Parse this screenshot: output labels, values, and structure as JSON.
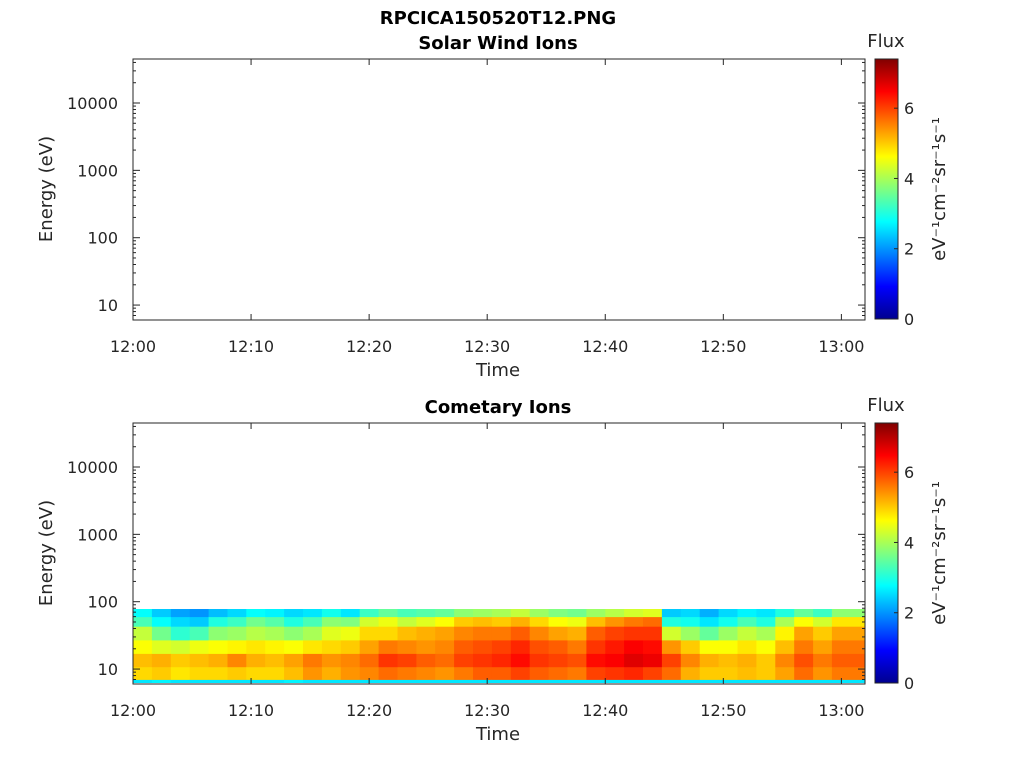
{
  "figure": {
    "title": "RPCICA150520T12.PNG"
  },
  "chart_data": [
    {
      "type": "heatmap",
      "title": "Solar Wind Ions",
      "xlabel": "Time",
      "ylabel": "Energy (eV)",
      "x_tick_labels": [
        "12:00",
        "12:10",
        "12:20",
        "12:30",
        "12:40",
        "12:50",
        "13:00"
      ],
      "y_tick_labels": [
        "10",
        "100",
        "1000",
        "10000"
      ],
      "y_scale": "log",
      "ylim": [
        6,
        45000
      ],
      "xlim_minutes": [
        0,
        62
      ],
      "colorbar": {
        "title": "Flux",
        "label": "eV⁻¹cm⁻²sr⁻¹s⁻¹",
        "tick_labels": [
          "0",
          "2",
          "4",
          "6"
        ],
        "range": [
          0,
          7.4
        ],
        "colormap": "jet"
      },
      "columns": []
    },
    {
      "type": "heatmap",
      "title": "Cometary Ions",
      "xlabel": "Time",
      "ylabel": "Energy (eV)",
      "x_tick_labels": [
        "12:00",
        "12:10",
        "12:20",
        "12:30",
        "12:40",
        "12:50",
        "13:00"
      ],
      "y_tick_labels": [
        "10",
        "100",
        "1000",
        "10000"
      ],
      "y_scale": "log",
      "ylim": [
        6,
        45000
      ],
      "xlim_minutes": [
        0,
        62
      ],
      "colorbar": {
        "title": "Flux",
        "label": "eV⁻¹cm⁻²sr⁻¹s⁻¹",
        "tick_labels": [
          "0",
          "2",
          "4",
          "6"
        ],
        "range": [
          0,
          7.4
        ],
        "colormap": "jet"
      },
      "energy_bands_eV": [
        [
          6.3,
          7.0
        ],
        [
          7.0,
          10.8
        ],
        [
          10.8,
          17.0
        ],
        [
          17.0,
          27.0
        ],
        [
          27.0,
          43.0
        ],
        [
          43.0,
          60.0
        ],
        [
          60.0,
          78.0
        ]
      ],
      "columns": [
        {
          "t": 0.0,
          "dt": 1.6,
          "flux": [
            2.6,
            4.9,
            5.1,
            4.6,
            4.2,
            3.3,
            2.8
          ]
        },
        {
          "t": 1.6,
          "dt": 1.6,
          "flux": [
            2.7,
            5.0,
            5.2,
            4.4,
            3.6,
            2.8,
            2.4
          ]
        },
        {
          "t": 3.2,
          "dt": 1.6,
          "flux": [
            2.6,
            4.8,
            5.0,
            4.3,
            3.1,
            2.5,
            2.1
          ]
        },
        {
          "t": 4.8,
          "dt": 1.6,
          "flux": [
            2.6,
            4.9,
            5.1,
            4.5,
            3.3,
            2.4,
            2.0
          ]
        },
        {
          "t": 6.4,
          "dt": 1.6,
          "flux": [
            2.6,
            4.9,
            5.2,
            4.6,
            3.8,
            3.0,
            2.3
          ]
        },
        {
          "t": 8.0,
          "dt": 1.6,
          "flux": [
            2.6,
            5.0,
            5.5,
            4.7,
            3.9,
            3.2,
            2.5
          ]
        },
        {
          "t": 9.6,
          "dt": 1.6,
          "flux": [
            2.6,
            4.9,
            5.2,
            4.8,
            4.1,
            3.6,
            2.8
          ]
        },
        {
          "t": 11.2,
          "dt": 1.6,
          "flux": [
            2.6,
            4.9,
            5.1,
            4.7,
            4.0,
            3.4,
            2.7
          ]
        },
        {
          "t": 12.8,
          "dt": 1.6,
          "flux": [
            2.7,
            5.1,
            5.3,
            4.6,
            3.8,
            3.0,
            2.5
          ]
        },
        {
          "t": 14.4,
          "dt": 1.6,
          "flux": [
            2.6,
            5.4,
            5.6,
            4.8,
            4.0,
            3.3,
            2.6
          ]
        },
        {
          "t": 16.0,
          "dt": 1.6,
          "flux": [
            2.6,
            5.2,
            5.4,
            4.9,
            4.4,
            3.8,
            2.9
          ]
        },
        {
          "t": 17.6,
          "dt": 1.6,
          "flux": [
            2.6,
            5.4,
            5.5,
            5.0,
            4.5,
            3.7,
            2.6
          ]
        },
        {
          "t": 19.2,
          "dt": 1.6,
          "flux": [
            2.6,
            5.5,
            5.7,
            5.3,
            4.9,
            4.3,
            3.2
          ]
        },
        {
          "t": 20.8,
          "dt": 1.6,
          "flux": [
            2.6,
            5.7,
            6.1,
            5.6,
            4.9,
            4.5,
            3.5
          ]
        },
        {
          "t": 22.4,
          "dt": 1.6,
          "flux": [
            2.6,
            5.6,
            6.0,
            5.5,
            5.1,
            4.2,
            3.3
          ]
        },
        {
          "t": 24.0,
          "dt": 1.6,
          "flux": [
            2.6,
            5.5,
            5.8,
            5.4,
            5.2,
            4.4,
            3.4
          ]
        },
        {
          "t": 25.6,
          "dt": 1.6,
          "flux": [
            2.6,
            5.4,
            5.7,
            5.5,
            5.3,
            4.6,
            3.5
          ]
        },
        {
          "t": 27.2,
          "dt": 1.6,
          "flux": [
            2.6,
            5.6,
            6.0,
            5.8,
            5.5,
            5.0,
            3.8
          ]
        },
        {
          "t": 28.8,
          "dt": 1.6,
          "flux": [
            2.6,
            5.8,
            6.1,
            5.9,
            5.6,
            5.1,
            3.9
          ]
        },
        {
          "t": 30.4,
          "dt": 1.6,
          "flux": [
            2.6,
            5.8,
            6.2,
            6.0,
            5.6,
            5.0,
            4.0
          ]
        },
        {
          "t": 32.0,
          "dt": 1.6,
          "flux": [
            2.6,
            6.0,
            6.4,
            6.2,
            5.8,
            5.2,
            4.2
          ]
        },
        {
          "t": 33.6,
          "dt": 1.6,
          "flux": [
            2.6,
            5.8,
            6.1,
            5.9,
            5.5,
            4.9,
            3.9
          ]
        },
        {
          "t": 35.2,
          "dt": 1.6,
          "flux": [
            2.6,
            5.7,
            6.0,
            5.8,
            5.3,
            4.6,
            3.7
          ]
        },
        {
          "t": 36.8,
          "dt": 1.6,
          "flux": [
            2.6,
            5.6,
            5.9,
            5.6,
            5.2,
            4.5,
            3.6
          ]
        },
        {
          "t": 38.4,
          "dt": 1.6,
          "flux": [
            2.6,
            6.0,
            6.4,
            6.1,
            5.8,
            5.1,
            3.9
          ]
        },
        {
          "t": 40.0,
          "dt": 1.6,
          "flux": [
            2.6,
            6.1,
            6.5,
            6.3,
            6.0,
            5.4,
            4.1
          ]
        },
        {
          "t": 41.6,
          "dt": 1.6,
          "flux": [
            2.6,
            6.2,
            6.7,
            6.5,
            6.1,
            5.6,
            4.3
          ]
        },
        {
          "t": 43.2,
          "dt": 1.6,
          "flux": [
            2.6,
            6.0,
            6.6,
            6.4,
            6.1,
            5.7,
            4.4
          ]
        },
        {
          "t": 44.8,
          "dt": 1.6,
          "flux": [
            2.6,
            5.7,
            6.0,
            5.4,
            4.3,
            3.0,
            2.4
          ]
        },
        {
          "t": 46.4,
          "dt": 1.6,
          "flux": [
            2.6,
            5.2,
            5.5,
            5.0,
            3.9,
            2.9,
            2.5
          ]
        },
        {
          "t": 48.0,
          "dt": 1.6,
          "flux": [
            2.6,
            5.0,
            5.2,
            4.6,
            3.5,
            2.6,
            2.2
          ]
        },
        {
          "t": 49.6,
          "dt": 1.6,
          "flux": [
            2.6,
            5.0,
            5.1,
            4.6,
            3.9,
            2.9,
            2.5
          ]
        },
        {
          "t": 51.2,
          "dt": 1.6,
          "flux": [
            2.6,
            5.1,
            5.2,
            4.8,
            4.2,
            3.3,
            2.7
          ]
        },
        {
          "t": 52.8,
          "dt": 1.6,
          "flux": [
            2.6,
            5.0,
            5.0,
            4.6,
            4.0,
            3.0,
            2.6
          ]
        },
        {
          "t": 54.4,
          "dt": 1.6,
          "flux": [
            2.6,
            5.3,
            5.5,
            5.1,
            4.7,
            4.0,
            3.0
          ]
        },
        {
          "t": 56.0,
          "dt": 1.6,
          "flux": [
            2.6,
            5.7,
            5.9,
            5.6,
            5.3,
            4.6,
            3.5
          ]
        },
        {
          "t": 57.6,
          "dt": 1.6,
          "flux": [
            2.6,
            5.4,
            5.6,
            5.3,
            5.0,
            4.3,
            3.2
          ]
        },
        {
          "t": 59.2,
          "dt": 2.8,
          "flux": [
            2.6,
            5.6,
            5.8,
            5.6,
            5.3,
            4.8,
            3.8
          ]
        }
      ]
    }
  ]
}
